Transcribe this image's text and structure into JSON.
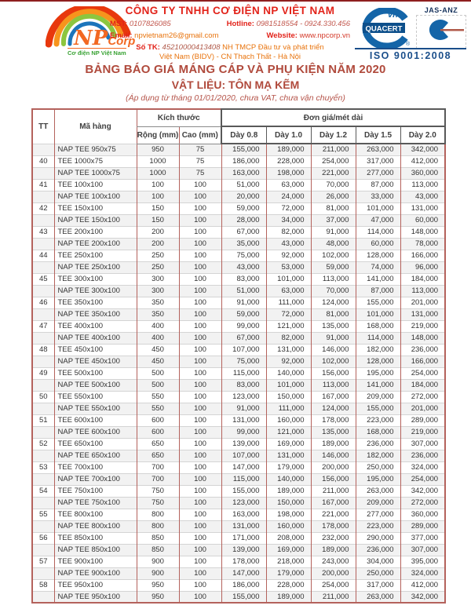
{
  "header": {
    "company_name": "CÔNG TY TNHH CƠ ĐIỆN NP VIỆT NAM",
    "mst_label": "MST:",
    "mst": "0107826085",
    "hotline_label": "Hotline:",
    "hotline": "0981518554 - 0924.330.456",
    "email_label": "Email:",
    "email": "npvietnam26@gmail.com",
    "website_label": "Website:",
    "website": "www.npcorp.vn",
    "bank_label": "Số TK:",
    "bank_number": "45210000413408",
    "bank_text1": "NH TMCP Đầu tư và phát triển",
    "bank_text2": "Việt Nam (BIDV) - CN Thạch Thất - Hà Nội",
    "logo": {
      "np": "NP",
      "corp": "Corp",
      "tagline": "Cơ điện NP Việt Nam"
    },
    "certs": {
      "quacert": "QUACERT",
      "quacert_vn": "vn",
      "jas_anz": "JAS-ANZ",
      "iso": "ISO 9001:2008"
    }
  },
  "title": {
    "line1": "BẢNG BÁO GIÁ MÁNG CÁP VÀ PHỤ KIỆN NĂM 2020",
    "line2": "VẬT LIỆU: TÔN MẠ KẼM",
    "line3": "(Áp dụng từ tháng 01/01/2020, chưa VAT, chưa vận chuyển)"
  },
  "colors": {
    "accent_red": "#e2231a",
    "title_brown": "#b04a3c",
    "table_border_red": "#b4625c",
    "price_block_border": "#595959",
    "cert_blue": "#1a4e8a",
    "logo_orange": "#f26822",
    "logo_green": "#3aa335",
    "alt_row": "#f2f2f2"
  },
  "table": {
    "headers": {
      "tt": "TT",
      "ma_hang": "Mã hàng",
      "kich_thuoc": "Kích thước",
      "don_gia": "Đơn giá/mét dài",
      "rong": "Rộng (mm)",
      "cao": "Cao (mm)",
      "days": [
        "Dày 0.8",
        "Dày 1.0",
        "Dày 1.2",
        "Dày 1.5",
        "Dày 2.0"
      ]
    },
    "rows": [
      {
        "tt": "",
        "name": "NAP TEE 950x75",
        "w": "950",
        "h": "75",
        "prices": [
          "155,000",
          "189,000",
          "211,000",
          "263,000",
          "342,000"
        ]
      },
      {
        "tt": "40",
        "name": "TEE 1000x75",
        "w": "1000",
        "h": "75",
        "prices": [
          "186,000",
          "228,000",
          "254,000",
          "317,000",
          "412,000"
        ]
      },
      {
        "tt": "",
        "name": "NAP TEE 1000x75",
        "w": "1000",
        "h": "75",
        "prices": [
          "163,000",
          "198,000",
          "221,000",
          "277,000",
          "360,000"
        ]
      },
      {
        "tt": "41",
        "name": "TEE 100x100",
        "w": "100",
        "h": "100",
        "prices": [
          "51,000",
          "63,000",
          "70,000",
          "87,000",
          "113,000"
        ]
      },
      {
        "tt": "",
        "name": "NAP TEE 100x100",
        "w": "100",
        "h": "100",
        "prices": [
          "20,000",
          "24,000",
          "26,000",
          "33,000",
          "43,000"
        ]
      },
      {
        "tt": "42",
        "name": "TEE 150x100",
        "w": "150",
        "h": "100",
        "prices": [
          "59,000",
          "72,000",
          "81,000",
          "101,000",
          "131,000"
        ]
      },
      {
        "tt": "",
        "name": "NAP TEE 150x100",
        "w": "150",
        "h": "100",
        "prices": [
          "28,000",
          "34,000",
          "37,000",
          "47,000",
          "60,000"
        ]
      },
      {
        "tt": "43",
        "name": "TEE 200x100",
        "w": "200",
        "h": "100",
        "prices": [
          "67,000",
          "82,000",
          "91,000",
          "114,000",
          "148,000"
        ]
      },
      {
        "tt": "",
        "name": "NAP TEE 200x100",
        "w": "200",
        "h": "100",
        "prices": [
          "35,000",
          "43,000",
          "48,000",
          "60,000",
          "78,000"
        ]
      },
      {
        "tt": "44",
        "name": "TEE 250x100",
        "w": "250",
        "h": "100",
        "prices": [
          "75,000",
          "92,000",
          "102,000",
          "128,000",
          "166,000"
        ]
      },
      {
        "tt": "",
        "name": "NAP TEE 250x100",
        "w": "250",
        "h": "100",
        "prices": [
          "43,000",
          "53,000",
          "59,000",
          "74,000",
          "96,000"
        ]
      },
      {
        "tt": "45",
        "name": "TEE 300x100",
        "w": "300",
        "h": "100",
        "prices": [
          "83,000",
          "101,000",
          "113,000",
          "141,000",
          "184,000"
        ]
      },
      {
        "tt": "",
        "name": "NAP TEE 300x100",
        "w": "300",
        "h": "100",
        "prices": [
          "51,000",
          "63,000",
          "70,000",
          "87,000",
          "113,000"
        ]
      },
      {
        "tt": "46",
        "name": "TEE 350x100",
        "w": "350",
        "h": "100",
        "prices": [
          "91,000",
          "111,000",
          "124,000",
          "155,000",
          "201,000"
        ]
      },
      {
        "tt": "",
        "name": "NAP TEE 350x100",
        "w": "350",
        "h": "100",
        "prices": [
          "59,000",
          "72,000",
          "81,000",
          "101,000",
          "131,000"
        ]
      },
      {
        "tt": "47",
        "name": "TEE 400x100",
        "w": "400",
        "h": "100",
        "prices": [
          "99,000",
          "121,000",
          "135,000",
          "168,000",
          "219,000"
        ]
      },
      {
        "tt": "",
        "name": "NAP TEE 400x100",
        "w": "400",
        "h": "100",
        "prices": [
          "67,000",
          "82,000",
          "91,000",
          "114,000",
          "148,000"
        ]
      },
      {
        "tt": "48",
        "name": "TEE 450x100",
        "w": "450",
        "h": "100",
        "prices": [
          "107,000",
          "131,000",
          "146,000",
          "182,000",
          "236,000"
        ]
      },
      {
        "tt": "",
        "name": "NAP TEE 450x100",
        "w": "450",
        "h": "100",
        "prices": [
          "75,000",
          "92,000",
          "102,000",
          "128,000",
          "166,000"
        ]
      },
      {
        "tt": "49",
        "name": "TEE 500x100",
        "w": "500",
        "h": "100",
        "prices": [
          "115,000",
          "140,000",
          "156,000",
          "195,000",
          "254,000"
        ]
      },
      {
        "tt": "",
        "name": "NAP TEE 500x100",
        "w": "500",
        "h": "100",
        "prices": [
          "83,000",
          "101,000",
          "113,000",
          "141,000",
          "184,000"
        ]
      },
      {
        "tt": "50",
        "name": "TEE 550x100",
        "w": "550",
        "h": "100",
        "prices": [
          "123,000",
          "150,000",
          "167,000",
          "209,000",
          "272,000"
        ]
      },
      {
        "tt": "",
        "name": "NAP TEE 550x100",
        "w": "550",
        "h": "100",
        "prices": [
          "91,000",
          "111,000",
          "124,000",
          "155,000",
          "201,000"
        ]
      },
      {
        "tt": "51",
        "name": "TEE 600x100",
        "w": "600",
        "h": "100",
        "prices": [
          "131,000",
          "160,000",
          "178,000",
          "223,000",
          "289,000"
        ]
      },
      {
        "tt": "",
        "name": "NAP TEE 600x100",
        "w": "600",
        "h": "100",
        "prices": [
          "99,000",
          "121,000",
          "135,000",
          "168,000",
          "219,000"
        ]
      },
      {
        "tt": "52",
        "name": "TEE 650x100",
        "w": "650",
        "h": "100",
        "prices": [
          "139,000",
          "169,000",
          "189,000",
          "236,000",
          "307,000"
        ]
      },
      {
        "tt": "",
        "name": "NAP TEE 650x100",
        "w": "650",
        "h": "100",
        "prices": [
          "107,000",
          "131,000",
          "146,000",
          "182,000",
          "236,000"
        ]
      },
      {
        "tt": "53",
        "name": "TEE 700x100",
        "w": "700",
        "h": "100",
        "prices": [
          "147,000",
          "179,000",
          "200,000",
          "250,000",
          "324,000"
        ]
      },
      {
        "tt": "",
        "name": "NAP TEE 700x100",
        "w": "700",
        "h": "100",
        "prices": [
          "115,000",
          "140,000",
          "156,000",
          "195,000",
          "254,000"
        ]
      },
      {
        "tt": "54",
        "name": "TEE 750x100",
        "w": "750",
        "h": "100",
        "prices": [
          "155,000",
          "189,000",
          "211,000",
          "263,000",
          "342,000"
        ]
      },
      {
        "tt": "",
        "name": "NAP TEE 750x100",
        "w": "750",
        "h": "100",
        "prices": [
          "123,000",
          "150,000",
          "167,000",
          "209,000",
          "272,000"
        ]
      },
      {
        "tt": "55",
        "name": "TEE 800x100",
        "w": "800",
        "h": "100",
        "prices": [
          "163,000",
          "198,000",
          "221,000",
          "277,000",
          "360,000"
        ]
      },
      {
        "tt": "",
        "name": "NAP TEE 800x100",
        "w": "800",
        "h": "100",
        "prices": [
          "131,000",
          "160,000",
          "178,000",
          "223,000",
          "289,000"
        ]
      },
      {
        "tt": "56",
        "name": "TEE 850x100",
        "w": "850",
        "h": "100",
        "prices": [
          "171,000",
          "208,000",
          "232,000",
          "290,000",
          "377,000"
        ]
      },
      {
        "tt": "",
        "name": "NAP TEE 850x100",
        "w": "850",
        "h": "100",
        "prices": [
          "139,000",
          "169,000",
          "189,000",
          "236,000",
          "307,000"
        ]
      },
      {
        "tt": "57",
        "name": "TEE 900x100",
        "w": "900",
        "h": "100",
        "prices": [
          "178,000",
          "218,000",
          "243,000",
          "304,000",
          "395,000"
        ]
      },
      {
        "tt": "",
        "name": "NAP TEE 900x100",
        "w": "900",
        "h": "100",
        "prices": [
          "147,000",
          "179,000",
          "200,000",
          "250,000",
          "324,000"
        ]
      },
      {
        "tt": "58",
        "name": "TEE 950x100",
        "w": "950",
        "h": "100",
        "prices": [
          "186,000",
          "228,000",
          "254,000",
          "317,000",
          "412,000"
        ]
      },
      {
        "tt": "",
        "name": "NAP TEE 950x100",
        "w": "950",
        "h": "100",
        "prices": [
          "155,000",
          "189,000",
          "211,000",
          "263,000",
          "342,000"
        ]
      }
    ]
  }
}
